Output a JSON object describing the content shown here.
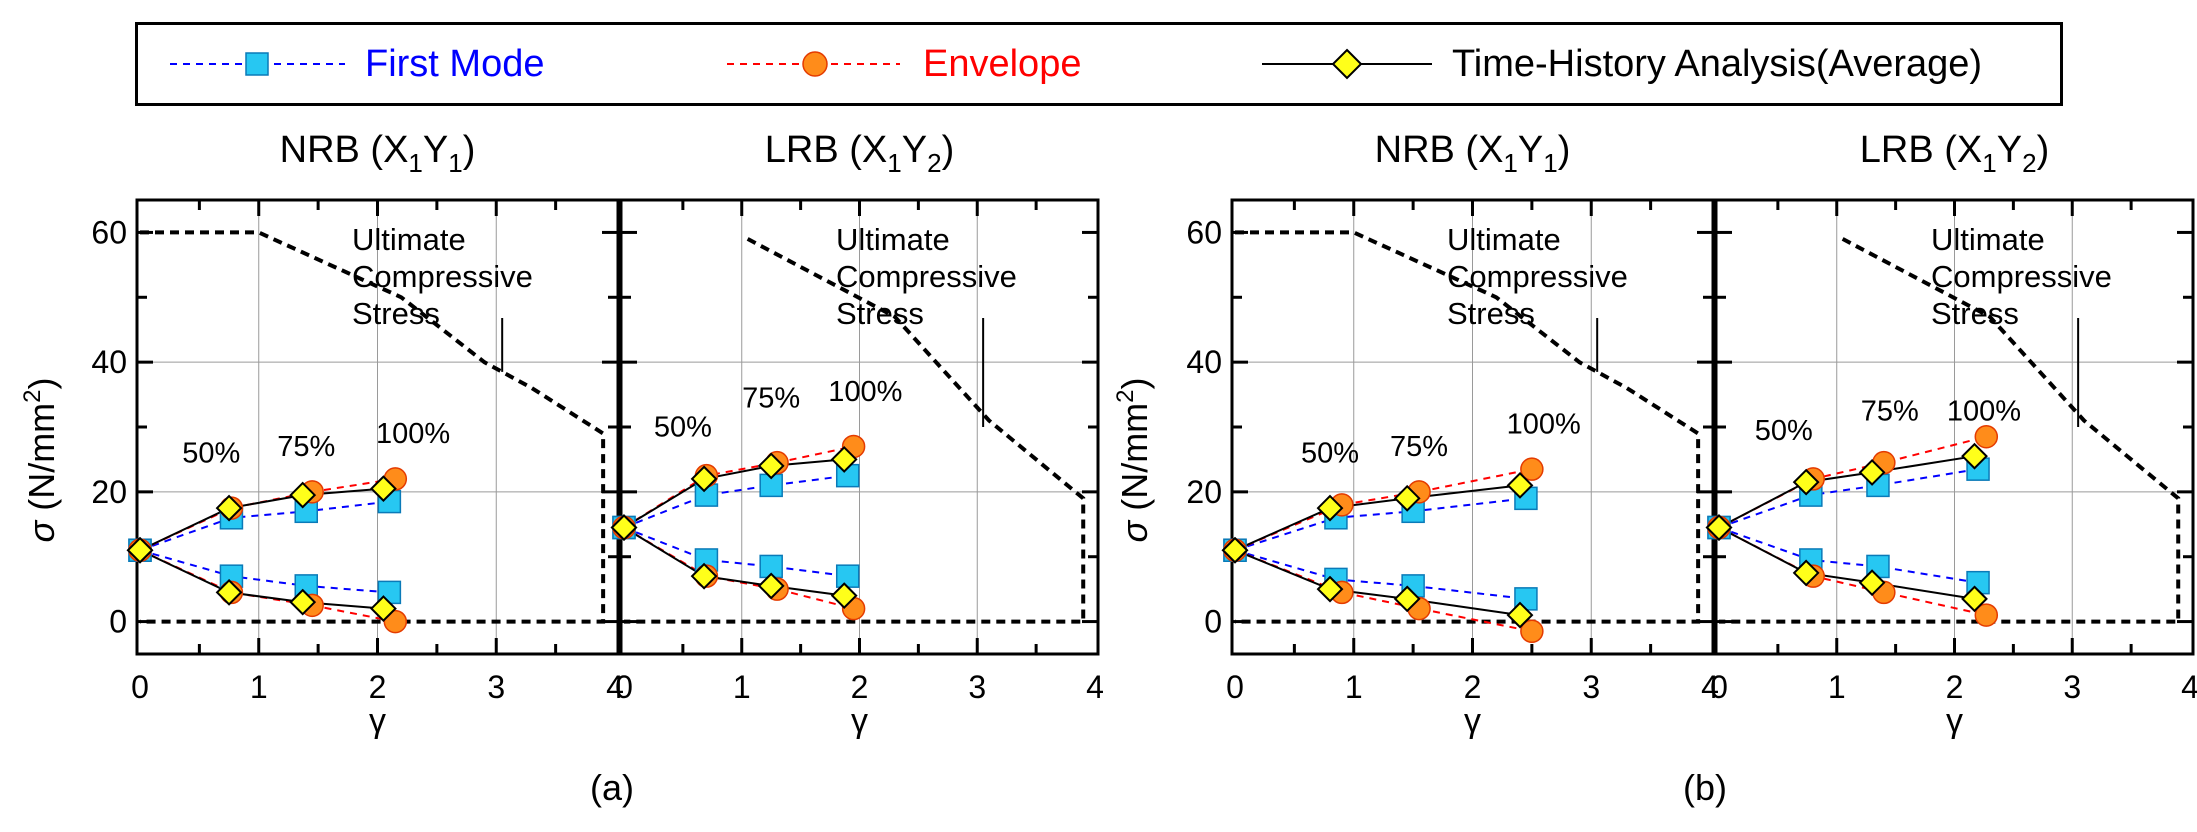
{
  "legend": {
    "first_mode": {
      "label": "First Mode",
      "color": "#0000ff",
      "marker_fill": "#27c7f2"
    },
    "envelope": {
      "label": "Envelope",
      "color": "#ff0000",
      "marker_fill": "#ff8c1a"
    },
    "time_history": {
      "label": "Time-History Analysis(Average)",
      "color": "#000000",
      "marker_fill": "#ffff1a"
    }
  },
  "groups": [
    {
      "label": "(a)"
    },
    {
      "label": "(b)"
    }
  ],
  "ylabel_symbol": "σ",
  "ylabel_unit_pre": " (N/mm",
  "ylabel_unit_exp": "2",
  "ylabel_unit_post": ")",
  "xlabel": "γ",
  "annotation_lines": [
    "Ultimate",
    "Compressive",
    "Stress"
  ],
  "chart_data": [
    {
      "type": "line",
      "panel": "(a) NRB (X1Y1)",
      "title_main": "NRB (X",
      "title_sub1": "1",
      "title_mid": "Y",
      "title_sub2": "1",
      "title_end": ")",
      "xlim": [
        0,
        4
      ],
      "ylim": [
        -5,
        65
      ],
      "xticks": [
        "0",
        "1",
        "2",
        "3",
        "4"
      ],
      "yticks": [
        "0",
        "20",
        "40",
        "60"
      ],
      "percent_labels": [
        {
          "text": "50%",
          "x": 0.6,
          "y": 24.5
        },
        {
          "text": "75%",
          "x": 1.4,
          "y": 25.5
        },
        {
          "text": "100%",
          "x": 2.3,
          "y": 27.5
        }
      ],
      "limit_line": [
        [
          0,
          60
        ],
        [
          1,
          60
        ],
        [
          2.2,
          50
        ],
        [
          2.9,
          40
        ],
        [
          3.3,
          36
        ],
        [
          3.9,
          29
        ],
        [
          3.9,
          0
        ],
        [
          0,
          0
        ]
      ],
      "series": [
        {
          "name": "First Mode",
          "upper": [
            [
              0,
              11
            ],
            [
              0.77,
              16
            ],
            [
              1.4,
              17
            ],
            [
              2.1,
              18.5
            ]
          ],
          "lower": [
            [
              0,
              11
            ],
            [
              0.77,
              7
            ],
            [
              1.4,
              5.5
            ],
            [
              2.1,
              4.5
            ]
          ]
        },
        {
          "name": "Envelope",
          "upper": [
            [
              0,
              11
            ],
            [
              0.77,
              17.5
            ],
            [
              1.45,
              20
            ],
            [
              2.15,
              22
            ]
          ],
          "lower": [
            [
              0,
              11
            ],
            [
              0.77,
              4.5
            ],
            [
              1.45,
              2.5
            ],
            [
              2.15,
              0
            ]
          ]
        },
        {
          "name": "Time-History Analysis(Average)",
          "upper": [
            [
              0,
              11
            ],
            [
              0.75,
              17.5
            ],
            [
              1.37,
              19.5
            ],
            [
              2.05,
              20.5
            ]
          ],
          "lower": [
            [
              0,
              11
            ],
            [
              0.75,
              4.5
            ],
            [
              1.37,
              3
            ],
            [
              2.05,
              2
            ]
          ]
        }
      ]
    },
    {
      "type": "line",
      "panel": "(a) LRB (X1Y2)",
      "title_main": "LRB (X",
      "title_sub1": "1",
      "title_mid": "Y",
      "title_sub2": "2",
      "title_end": ")",
      "xlim": [
        0,
        4
      ],
      "ylim": [
        -5,
        65
      ],
      "xticks": [
        "0",
        "1",
        "2",
        "3",
        "4"
      ],
      "yticks": [],
      "percent_labels": [
        {
          "text": "50%",
          "x": 0.5,
          "y": 28.5
        },
        {
          "text": "75%",
          "x": 1.25,
          "y": 33
        },
        {
          "text": "100%",
          "x": 2.05,
          "y": 34
        }
      ],
      "limit_line": [
        [
          1.05,
          59
        ],
        [
          2.3,
          47
        ],
        [
          3.1,
          31
        ],
        [
          3.9,
          19
        ],
        [
          3.9,
          0
        ],
        [
          0,
          0
        ]
      ],
      "series": [
        {
          "name": "First Mode",
          "upper": [
            [
              0,
              14.5
            ],
            [
              0.7,
              19.5
            ],
            [
              1.25,
              21
            ],
            [
              1.9,
              22.5
            ]
          ],
          "lower": [
            [
              0,
              14.5
            ],
            [
              0.7,
              9.5
            ],
            [
              1.25,
              8.5
            ],
            [
              1.9,
              7
            ]
          ]
        },
        {
          "name": "Envelope",
          "upper": [
            [
              0,
              14.5
            ],
            [
              0.7,
              22.5
            ],
            [
              1.3,
              24.5
            ],
            [
              1.95,
              27
            ]
          ],
          "lower": [
            [
              0,
              14.5
            ],
            [
              0.7,
              7
            ],
            [
              1.3,
              5
            ],
            [
              1.95,
              2
            ]
          ]
        },
        {
          "name": "Time-History Analysis(Average)",
          "upper": [
            [
              0,
              14.5
            ],
            [
              0.68,
              22
            ],
            [
              1.25,
              24
            ],
            [
              1.87,
              25
            ]
          ],
          "lower": [
            [
              0,
              14.5
            ],
            [
              0.68,
              7
            ],
            [
              1.25,
              5.5
            ],
            [
              1.87,
              4
            ]
          ]
        }
      ]
    },
    {
      "type": "line",
      "panel": "(b) NRB (X1Y1)",
      "title_main": "NRB (X",
      "title_sub1": "1",
      "title_mid": "Y",
      "title_sub2": "1",
      "title_end": ")",
      "xlim": [
        0,
        4
      ],
      "ylim": [
        -5,
        65
      ],
      "xticks": [
        "0",
        "1",
        "2",
        "3",
        "4"
      ],
      "yticks": [
        "0",
        "20",
        "40",
        "60"
      ],
      "percent_labels": [
        {
          "text": "50%",
          "x": 0.8,
          "y": 24.5
        },
        {
          "text": "75%",
          "x": 1.55,
          "y": 25.5
        },
        {
          "text": "100%",
          "x": 2.6,
          "y": 29
        }
      ],
      "limit_line": [
        [
          0,
          60
        ],
        [
          1,
          60
        ],
        [
          2.2,
          50
        ],
        [
          2.9,
          40
        ],
        [
          3.3,
          36
        ],
        [
          3.9,
          29
        ],
        [
          3.9,
          0
        ],
        [
          0,
          0
        ]
      ],
      "series": [
        {
          "name": "First Mode",
          "upper": [
            [
              0,
              11
            ],
            [
              0.85,
              16
            ],
            [
              1.5,
              17
            ],
            [
              2.45,
              19
            ]
          ],
          "lower": [
            [
              0,
              11
            ],
            [
              0.85,
              6.5
            ],
            [
              1.5,
              5.5
            ],
            [
              2.45,
              3.5
            ]
          ]
        },
        {
          "name": "Envelope",
          "upper": [
            [
              0,
              11
            ],
            [
              0.9,
              18
            ],
            [
              1.55,
              20
            ],
            [
              2.5,
              23.5
            ]
          ],
          "lower": [
            [
              0,
              11
            ],
            [
              0.9,
              4.5
            ],
            [
              1.55,
              2
            ],
            [
              2.5,
              -1.5
            ]
          ]
        },
        {
          "name": "Time-History Analysis(Average)",
          "upper": [
            [
              0,
              11
            ],
            [
              0.8,
              17.5
            ],
            [
              1.45,
              19
            ],
            [
              2.4,
              21
            ]
          ],
          "lower": [
            [
              0,
              11
            ],
            [
              0.8,
              5
            ],
            [
              1.45,
              3.5
            ],
            [
              2.4,
              1
            ]
          ]
        }
      ]
    },
    {
      "type": "line",
      "panel": "(b) LRB (X1Y2)",
      "title_main": "LRB (X",
      "title_sub1": "1",
      "title_mid": "Y",
      "title_sub2": "2",
      "title_end": ")",
      "xlim": [
        0,
        4
      ],
      "ylim": [
        -5,
        65
      ],
      "xticks": [
        "0",
        "1",
        "2",
        "3",
        "4"
      ],
      "yticks": [],
      "percent_labels": [
        {
          "text": "50%",
          "x": 0.55,
          "y": 28
        },
        {
          "text": "75%",
          "x": 1.45,
          "y": 31
        },
        {
          "text": "100%",
          "x": 2.25,
          "y": 31
        }
      ],
      "limit_line": [
        [
          1.05,
          59
        ],
        [
          2.3,
          47
        ],
        [
          3.1,
          31
        ],
        [
          3.9,
          19
        ],
        [
          3.9,
          0
        ],
        [
          0,
          0
        ]
      ],
      "series": [
        {
          "name": "First Mode",
          "upper": [
            [
              0,
              14.5
            ],
            [
              0.78,
              19.5
            ],
            [
              1.35,
              21
            ],
            [
              2.2,
              23.5
            ]
          ],
          "lower": [
            [
              0,
              14.5
            ],
            [
              0.78,
              9.5
            ],
            [
              1.35,
              8.5
            ],
            [
              2.2,
              6
            ]
          ]
        },
        {
          "name": "Envelope",
          "upper": [
            [
              0,
              14.5
            ],
            [
              0.8,
              22
            ],
            [
              1.4,
              24.5
            ],
            [
              2.27,
              28.5
            ]
          ],
          "lower": [
            [
              0,
              14.5
            ],
            [
              0.8,
              7
            ],
            [
              1.4,
              4.5
            ],
            [
              2.27,
              1
            ]
          ]
        },
        {
          "name": "Time-History Analysis(Average)",
          "upper": [
            [
              0,
              14.5
            ],
            [
              0.74,
              21.5
            ],
            [
              1.3,
              23
            ],
            [
              2.17,
              25.5
            ]
          ],
          "lower": [
            [
              0,
              14.5
            ],
            [
              0.74,
              7.5
            ],
            [
              1.3,
              6
            ],
            [
              2.17,
              3.5
            ]
          ]
        }
      ]
    }
  ]
}
